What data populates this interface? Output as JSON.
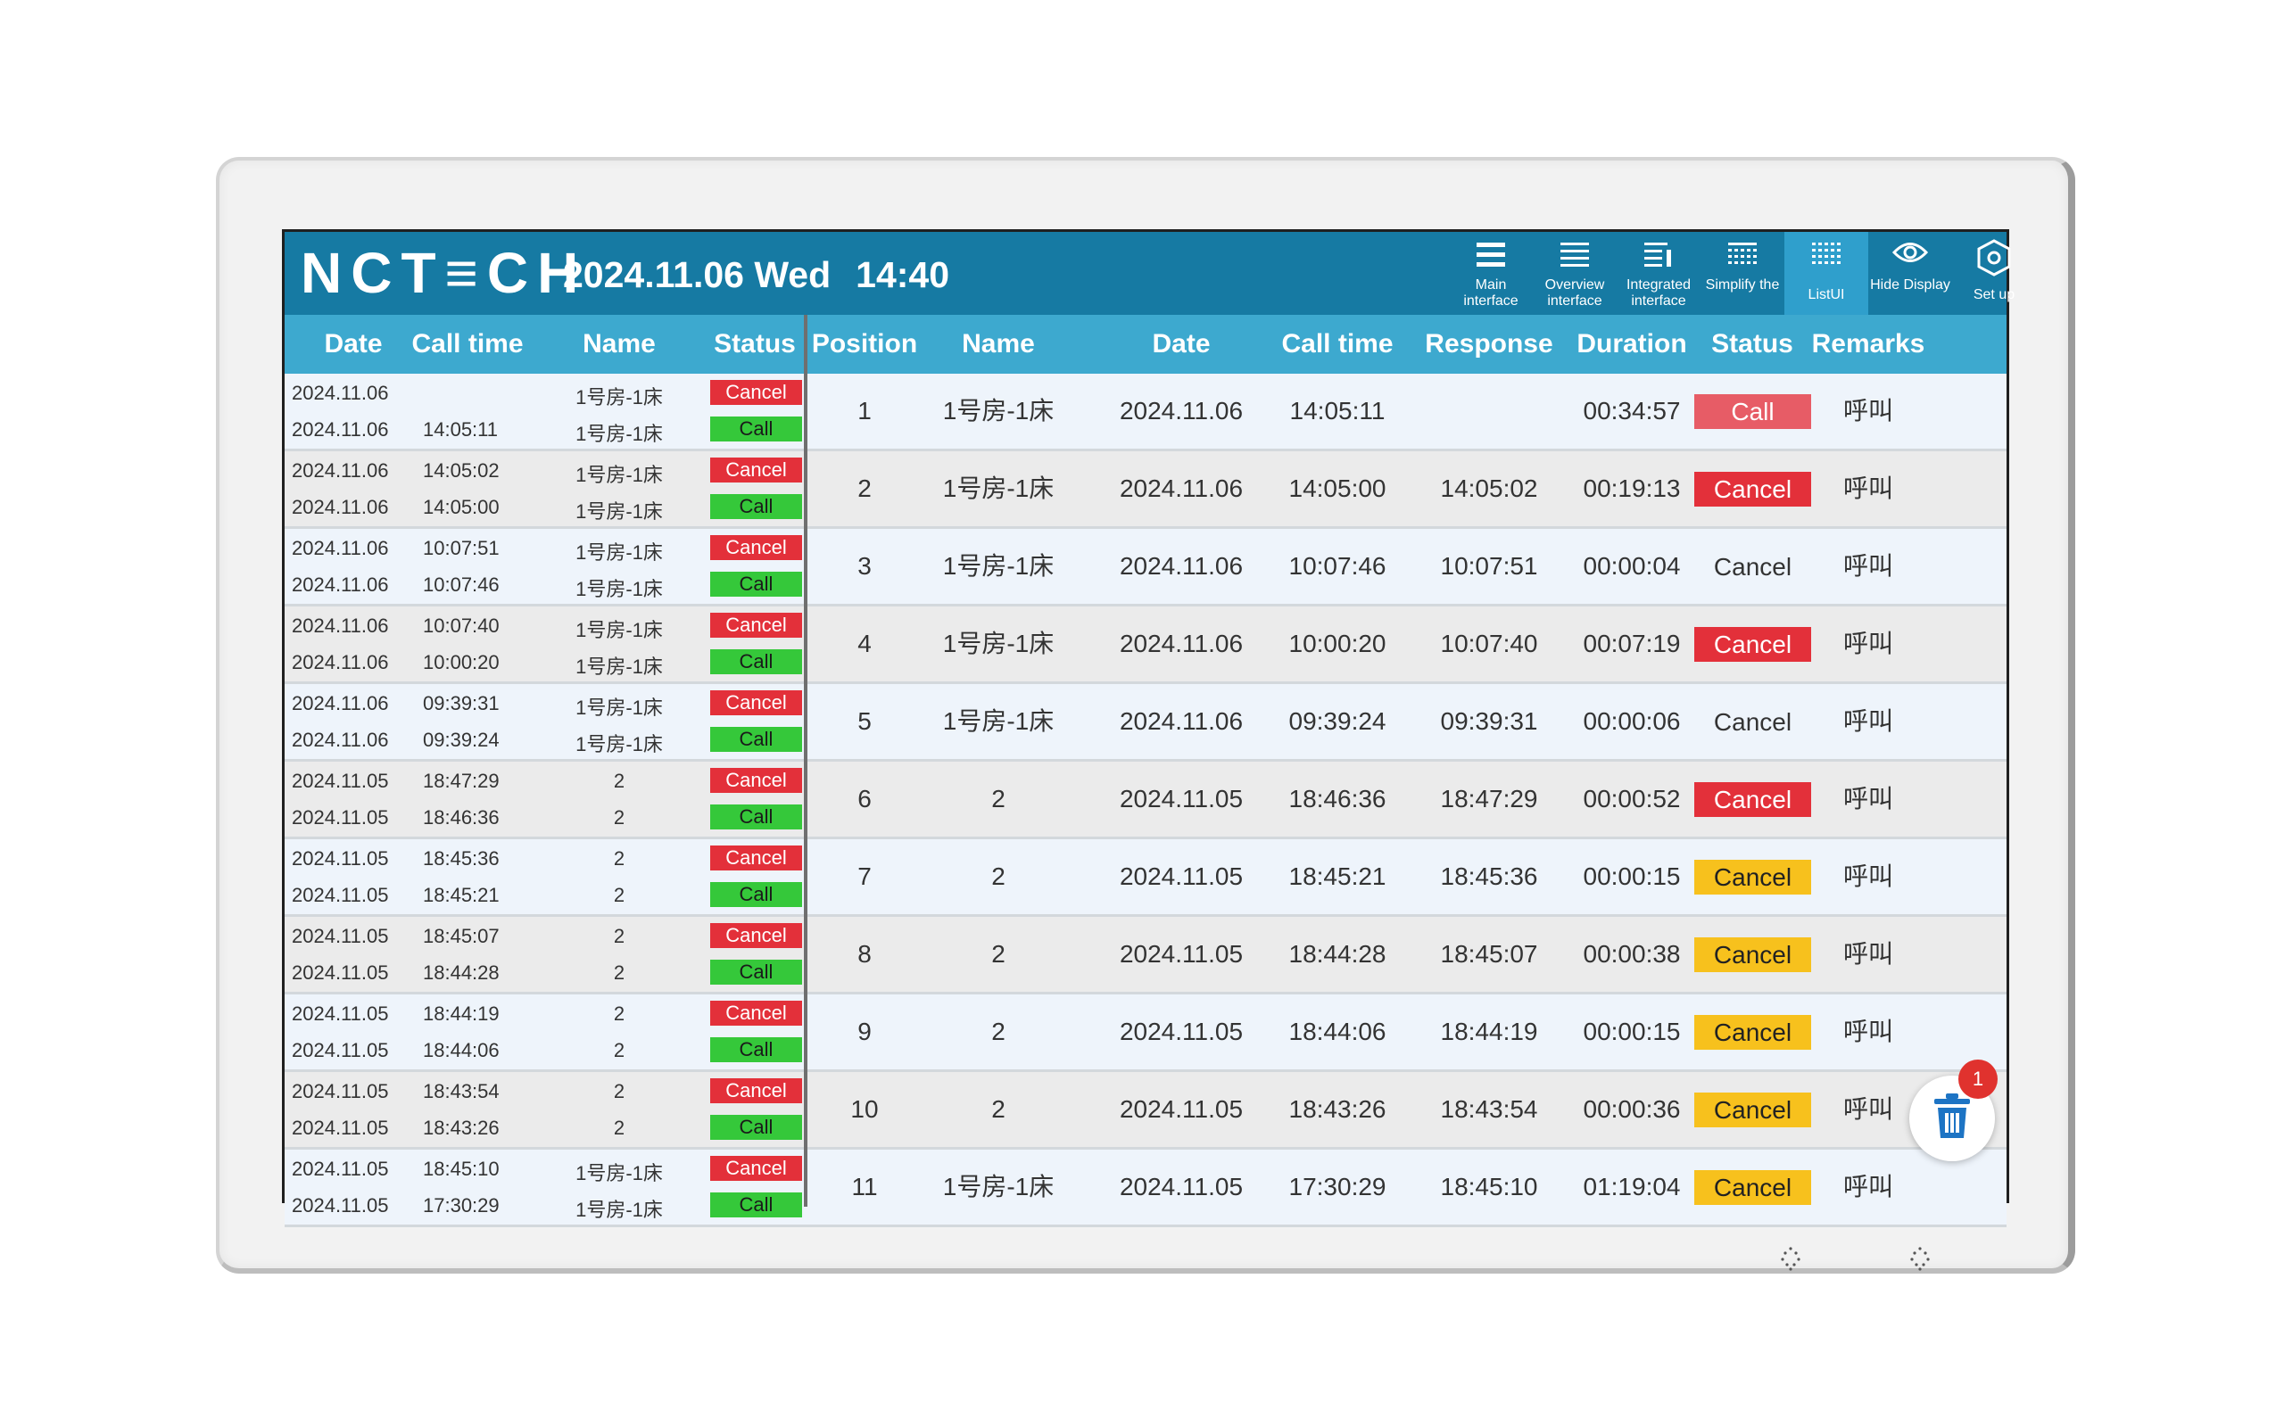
{
  "header": {
    "logo": "NCT≡CH",
    "date": "2024.11.06 Wed",
    "time": "14:40"
  },
  "toolbar": [
    {
      "label": "Main interface",
      "icon": "list-icon",
      "active": false
    },
    {
      "label": "Overview interface",
      "icon": "list-icon",
      "active": false
    },
    {
      "label": "Integrated interface",
      "icon": "list-detail-icon",
      "active": false
    },
    {
      "label": "Simplify the",
      "icon": "grid-icon",
      "active": false
    },
    {
      "label": "ListUI",
      "icon": "grid-dots-icon",
      "active": true
    },
    {
      "label": "Hide Display",
      "icon": "eye-icon",
      "active": false
    },
    {
      "label": "Set up",
      "icon": "settings-icon",
      "active": false
    }
  ],
  "log_columns": [
    "Date",
    "Call time",
    "Name",
    "Status"
  ],
  "main_columns": [
    "Position",
    "Name",
    "Date",
    "Call time",
    "Response",
    "Duration",
    "Status",
    "Remarks"
  ],
  "rows": [
    {
      "log": [
        {
          "date": "2024.11.06",
          "time": "",
          "name": "1号房-1床",
          "status": "Cancel",
          "type": "red"
        },
        {
          "date": "2024.11.06",
          "time": "14:05:11",
          "name": "1号房-1床",
          "status": "Call",
          "type": "green"
        }
      ],
      "position": "1",
      "name": "1号房-1床",
      "date": "2024.11.06",
      "call_time": "14:05:11",
      "response": "",
      "duration": "00:34:57",
      "status": "Call",
      "status_color": "redlight",
      "remarks": "呼叫"
    },
    {
      "log": [
        {
          "date": "2024.11.06",
          "time": "14:05:02",
          "name": "1号房-1床",
          "status": "Cancel",
          "type": "red"
        },
        {
          "date": "2024.11.06",
          "time": "14:05:00",
          "name": "1号房-1床",
          "status": "Call",
          "type": "green"
        }
      ],
      "position": "2",
      "name": "1号房-1床",
      "date": "2024.11.06",
      "call_time": "14:05:00",
      "response": "14:05:02",
      "duration": "00:19:13",
      "status": "Cancel",
      "status_color": "red",
      "remarks": "呼叫"
    },
    {
      "log": [
        {
          "date": "2024.11.06",
          "time": "10:07:51",
          "name": "1号房-1床",
          "status": "Cancel",
          "type": "red"
        },
        {
          "date": "2024.11.06",
          "time": "10:07:46",
          "name": "1号房-1床",
          "status": "Call",
          "type": "green"
        }
      ],
      "position": "3",
      "name": "1号房-1床",
      "date": "2024.11.06",
      "call_time": "10:07:46",
      "response": "10:07:51",
      "duration": "00:00:04",
      "status": "Cancel",
      "status_color": "plain",
      "remarks": "呼叫"
    },
    {
      "log": [
        {
          "date": "2024.11.06",
          "time": "10:07:40",
          "name": "1号房-1床",
          "status": "Cancel",
          "type": "red"
        },
        {
          "date": "2024.11.06",
          "time": "10:00:20",
          "name": "1号房-1床",
          "status": "Call",
          "type": "green"
        }
      ],
      "position": "4",
      "name": "1号房-1床",
      "date": "2024.11.06",
      "call_time": "10:00:20",
      "response": "10:07:40",
      "duration": "00:07:19",
      "status": "Cancel",
      "status_color": "red",
      "remarks": "呼叫"
    },
    {
      "log": [
        {
          "date": "2024.11.06",
          "time": "09:39:31",
          "name": "1号房-1床",
          "status": "Cancel",
          "type": "red"
        },
        {
          "date": "2024.11.06",
          "time": "09:39:24",
          "name": "1号房-1床",
          "status": "Call",
          "type": "green"
        }
      ],
      "position": "5",
      "name": "1号房-1床",
      "date": "2024.11.06",
      "call_time": "09:39:24",
      "response": "09:39:31",
      "duration": "00:00:06",
      "status": "Cancel",
      "status_color": "plain",
      "remarks": "呼叫"
    },
    {
      "log": [
        {
          "date": "2024.11.05",
          "time": "18:47:29",
          "name": "2",
          "status": "Cancel",
          "type": "red"
        },
        {
          "date": "2024.11.05",
          "time": "18:46:36",
          "name": "2",
          "status": "Call",
          "type": "green"
        }
      ],
      "position": "6",
      "name": "2",
      "date": "2024.11.05",
      "call_time": "18:46:36",
      "response": "18:47:29",
      "duration": "00:00:52",
      "status": "Cancel",
      "status_color": "red",
      "remarks": "呼叫"
    },
    {
      "log": [
        {
          "date": "2024.11.05",
          "time": "18:45:36",
          "name": "2",
          "status": "Cancel",
          "type": "red"
        },
        {
          "date": "2024.11.05",
          "time": "18:45:21",
          "name": "2",
          "status": "Call",
          "type": "green"
        }
      ],
      "position": "7",
      "name": "2",
      "date": "2024.11.05",
      "call_time": "18:45:21",
      "response": "18:45:36",
      "duration": "00:00:15",
      "status": "Cancel",
      "status_color": "yellow",
      "remarks": "呼叫"
    },
    {
      "log": [
        {
          "date": "2024.11.05",
          "time": "18:45:07",
          "name": "2",
          "status": "Cancel",
          "type": "red"
        },
        {
          "date": "2024.11.05",
          "time": "18:44:28",
          "name": "2",
          "status": "Call",
          "type": "green"
        }
      ],
      "position": "8",
      "name": "2",
      "date": "2024.11.05",
      "call_time": "18:44:28",
      "response": "18:45:07",
      "duration": "00:00:38",
      "status": "Cancel",
      "status_color": "yellow",
      "remarks": "呼叫"
    },
    {
      "log": [
        {
          "date": "2024.11.05",
          "time": "18:44:19",
          "name": "2",
          "status": "Cancel",
          "type": "red"
        },
        {
          "date": "2024.11.05",
          "time": "18:44:06",
          "name": "2",
          "status": "Call",
          "type": "green"
        }
      ],
      "position": "9",
      "name": "2",
      "date": "2024.11.05",
      "call_time": "18:44:06",
      "response": "18:44:19",
      "duration": "00:00:15",
      "status": "Cancel",
      "status_color": "yellow",
      "remarks": "呼叫"
    },
    {
      "log": [
        {
          "date": "2024.11.05",
          "time": "18:43:54",
          "name": "2",
          "status": "Cancel",
          "type": "red"
        },
        {
          "date": "2024.11.05",
          "time": "18:43:26",
          "name": "2",
          "status": "Call",
          "type": "green"
        }
      ],
      "position": "10",
      "name": "2",
      "date": "2024.11.05",
      "call_time": "18:43:26",
      "response": "18:43:54",
      "duration": "00:00:36",
      "status": "Cancel",
      "status_color": "yellow",
      "remarks": "呼叫"
    },
    {
      "log": [
        {
          "date": "2024.11.05",
          "time": "18:45:10",
          "name": "1号房-1床",
          "status": "Cancel",
          "type": "red"
        },
        {
          "date": "2024.11.05",
          "time": "17:30:29",
          "name": "1号房-1床",
          "status": "Call",
          "type": "green"
        }
      ],
      "position": "11",
      "name": "1号房-1床",
      "date": "2024.11.05",
      "call_time": "17:30:29",
      "response": "18:45:10",
      "duration": "01:19:04",
      "status": "Cancel",
      "status_color": "yellow",
      "remarks": "呼叫"
    }
  ],
  "fab": {
    "icon": "trash-icon",
    "count": "1"
  },
  "colors": {
    "header_bar": "#167aa3",
    "column_header": "#3da9cf",
    "cancel_red": "#e3303a",
    "call_green": "#35c83a",
    "cancel_yellow": "#f7c11d"
  }
}
